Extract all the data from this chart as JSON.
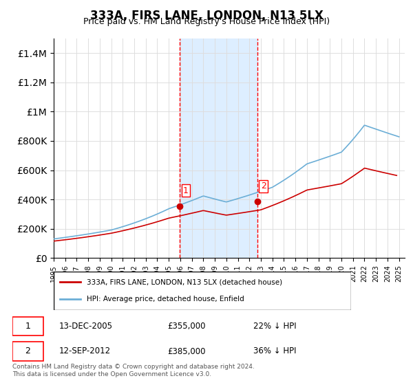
{
  "title": "333A, FIRS LANE, LONDON, N13 5LX",
  "subtitle": "Price paid vs. HM Land Registry's House Price Index (HPI)",
  "legend_line1": "333A, FIRS LANE, LONDON, N13 5LX (detached house)",
  "legend_line2": "HPI: Average price, detached house, Enfield",
  "transaction1_label": "1",
  "transaction1_date": "13-DEC-2005",
  "transaction1_price": "£355,000",
  "transaction1_hpi": "22% ↓ HPI",
  "transaction1_year": 2005.95,
  "transaction1_value": 355000,
  "transaction2_label": "2",
  "transaction2_date": "12-SEP-2012",
  "transaction2_price": "£385,000",
  "transaction2_hpi": "36% ↓ HPI",
  "transaction2_year": 2012.7,
  "transaction2_value": 385000,
  "footer": "Contains HM Land Registry data © Crown copyright and database right 2024.\nThis data is licensed under the Open Government Licence v3.0.",
  "hpi_color": "#6baed6",
  "price_color": "#cc0000",
  "highlight_color": "#ddeeff",
  "background_color": "#ffffff",
  "grid_color": "#dddddd",
  "ylim": [
    0,
    1500000
  ],
  "xlim_start": 1995.0,
  "xlim_end": 2025.5
}
